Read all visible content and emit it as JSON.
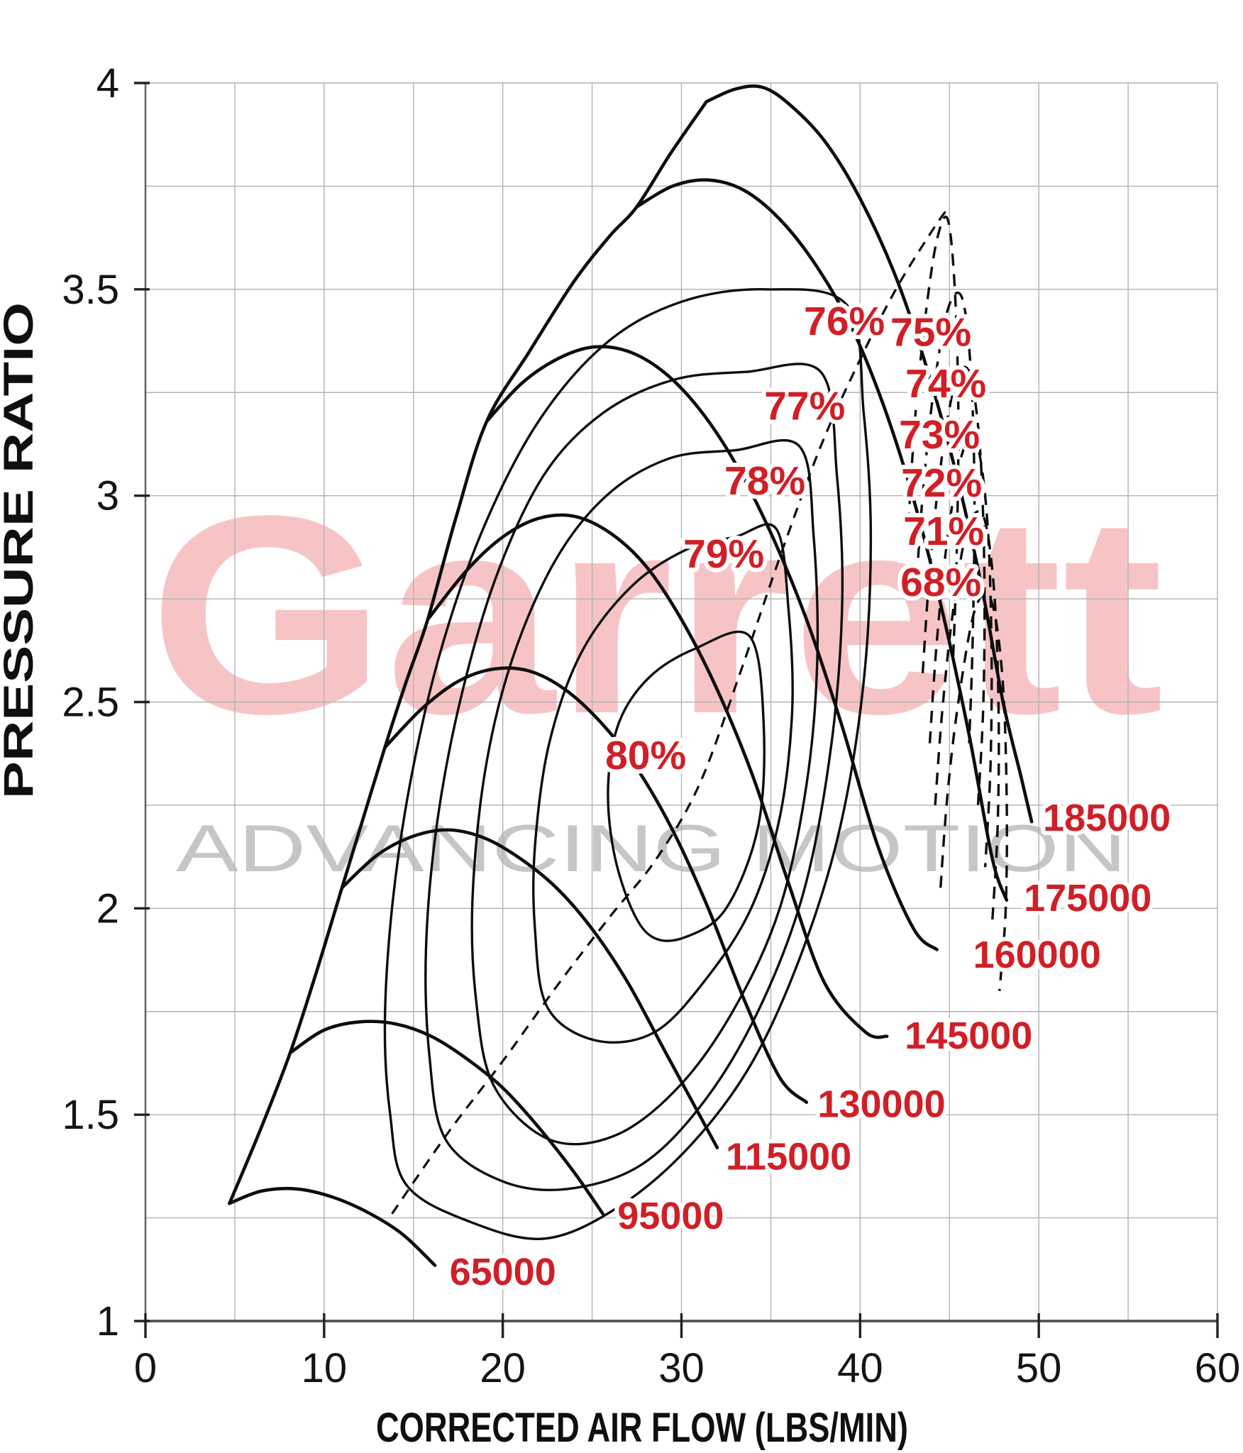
{
  "chart_data": {
    "type": "line",
    "subtype": "compressor-map",
    "xlabel": "CORRECTED AIR FLOW (LBS/MIN)",
    "ylabel": "PRESSURE RATIO",
    "xlim": [
      0,
      60
    ],
    "ylim": [
      1,
      4
    ],
    "x_major_ticks": [
      0,
      10,
      20,
      30,
      40,
      50,
      60
    ],
    "x_tick_labels": [
      "0",
      "10",
      "20",
      "30",
      "40",
      "50",
      "60"
    ],
    "y_major_ticks": [
      1,
      1.5,
      2,
      2.5,
      3,
      3.5,
      4
    ],
    "y_tick_labels": [
      "1",
      "1.5",
      "2",
      "2.5",
      "3",
      "3.5",
      "4"
    ],
    "x_minor_step": 5,
    "y_minor_step": 0.25,
    "grid": true,
    "legend_position": "none",
    "colors": {
      "curve": "#0d0d0d",
      "grid": "#b2b2b2",
      "axis": "#4a4a4a",
      "tick_text": "#141414",
      "red_label": "#d01f26",
      "watermark_red": "#e2242b",
      "watermark_gray": "#c6c6c6"
    },
    "watermark": {
      "brand": "Garrett",
      "tagline": "ADVANCING MOTION"
    },
    "surge_line": {
      "points": [
        [
          4.7,
          1.285
        ],
        [
          6.4,
          1.46
        ],
        [
          8.1,
          1.65
        ],
        [
          9.6,
          1.85
        ],
        [
          11,
          2.05
        ],
        [
          12.2,
          2.22
        ],
        [
          13.4,
          2.39
        ],
        [
          14.6,
          2.55
        ],
        [
          15.8,
          2.7
        ],
        [
          17.4,
          2.95
        ],
        [
          19.1,
          3.18
        ],
        [
          21.5,
          3.35
        ],
        [
          24,
          3.52
        ],
        [
          26,
          3.63
        ],
        [
          27.5,
          3.7
        ],
        [
          29.4,
          3.83
        ],
        [
          31.4,
          3.955
        ]
      ]
    },
    "peak_efficiency_line": {
      "style": "dashed",
      "points": [
        [
          13.8,
          1.26
        ],
        [
          17,
          1.46
        ],
        [
          20,
          1.63
        ],
        [
          23,
          1.81
        ],
        [
          26,
          1.98
        ],
        [
          28.6,
          2.12
        ],
        [
          31,
          2.3
        ],
        [
          33.2,
          2.56
        ],
        [
          35.5,
          2.85
        ],
        [
          37.8,
          3.12
        ],
        [
          40,
          3.33
        ],
        [
          42,
          3.5
        ],
        [
          44,
          3.64
        ],
        [
          44.8,
          3.69
        ]
      ]
    },
    "speed_lines": [
      {
        "rpm": "65000",
        "label_pos": {
          "flow": 20.0,
          "pr": 1.12
        },
        "points": [
          [
            4.7,
            1.285
          ],
          [
            6.5,
            1.315
          ],
          [
            8.5,
            1.32
          ],
          [
            10.5,
            1.3
          ],
          [
            12.5,
            1.262
          ],
          [
            14.4,
            1.21
          ],
          [
            16.2,
            1.135
          ]
        ]
      },
      {
        "rpm": "95000",
        "label_pos": {
          "flow": 29.4,
          "pr": 1.256
        },
        "points": [
          [
            8.1,
            1.65
          ],
          [
            10,
            1.705
          ],
          [
            12,
            1.725
          ],
          [
            14,
            1.72
          ],
          [
            16,
            1.69
          ],
          [
            18,
            1.635
          ],
          [
            20,
            1.565
          ],
          [
            22,
            1.47
          ],
          [
            24,
            1.36
          ],
          [
            25.6,
            1.26
          ]
        ]
      },
      {
        "rpm": "115000",
        "label_pos": {
          "flow": 36.0,
          "pr": 1.4
        },
        "points": [
          [
            11,
            2.05
          ],
          [
            13,
            2.13
          ],
          [
            15,
            2.175
          ],
          [
            17,
            2.19
          ],
          [
            19,
            2.17
          ],
          [
            21,
            2.12
          ],
          [
            23,
            2.05
          ],
          [
            25,
            1.95
          ],
          [
            27,
            1.82
          ],
          [
            29,
            1.66
          ],
          [
            31,
            1.5
          ],
          [
            32,
            1.42
          ]
        ]
      },
      {
        "rpm": "130000",
        "label_pos": {
          "flow": 41.2,
          "pr": 1.527
        },
        "points": [
          [
            13.4,
            2.39
          ],
          [
            15.5,
            2.485
          ],
          [
            17.5,
            2.55
          ],
          [
            19.5,
            2.58
          ],
          [
            21.5,
            2.575
          ],
          [
            23.5,
            2.53
          ],
          [
            25.5,
            2.45
          ],
          [
            27.5,
            2.34
          ],
          [
            29.5,
            2.19
          ],
          [
            31.5,
            2.0
          ],
          [
            33.5,
            1.78
          ],
          [
            35.5,
            1.59
          ],
          [
            37.0,
            1.53
          ]
        ]
      },
      {
        "rpm": "145000",
        "label_pos": {
          "flow": 46.07,
          "pr": 1.693
        },
        "points": [
          [
            15.8,
            2.7
          ],
          [
            18,
            2.82
          ],
          [
            20,
            2.9
          ],
          [
            22,
            2.945
          ],
          [
            24,
            2.95
          ],
          [
            26,
            2.91
          ],
          [
            28,
            2.83
          ],
          [
            30,
            2.7
          ],
          [
            32,
            2.53
          ],
          [
            34,
            2.32
          ],
          [
            36,
            2.06
          ],
          [
            38,
            1.82
          ],
          [
            40.3,
            1.7
          ],
          [
            41.5,
            1.69
          ]
        ]
      },
      {
        "rpm": "160000",
        "label_pos": {
          "flow": 49.9,
          "pr": 1.889
        },
        "points": [
          [
            19.1,
            3.18
          ],
          [
            21,
            3.27
          ],
          [
            23,
            3.33
          ],
          [
            25,
            3.36
          ],
          [
            27,
            3.35
          ],
          [
            29,
            3.3
          ],
          [
            31,
            3.21
          ],
          [
            33,
            3.08
          ],
          [
            35,
            2.91
          ],
          [
            37,
            2.7
          ],
          [
            39,
            2.44
          ],
          [
            41,
            2.15
          ],
          [
            43,
            1.95
          ],
          [
            44.3,
            1.9
          ]
        ]
      },
      {
        "rpm": "175000",
        "label_pos": {
          "flow": 52.74,
          "pr": 2.026
        },
        "points": [
          [
            27.5,
            3.7
          ],
          [
            29.5,
            3.75
          ],
          [
            31.5,
            3.765
          ],
          [
            33.5,
            3.74
          ],
          [
            35.5,
            3.67
          ],
          [
            37.5,
            3.56
          ],
          [
            39.5,
            3.41
          ],
          [
            41.3,
            3.22
          ],
          [
            43,
            2.99
          ],
          [
            44.6,
            2.72
          ],
          [
            46.1,
            2.42
          ],
          [
            47.4,
            2.12
          ],
          [
            48.2,
            2.02
          ]
        ]
      },
      {
        "rpm": "185000",
        "label_pos": {
          "flow": 53.81,
          "pr": 2.221
        },
        "points": [
          [
            31.4,
            3.955
          ],
          [
            33,
            3.985
          ],
          [
            34.5,
            3.99
          ],
          [
            36,
            3.95
          ],
          [
            38,
            3.86
          ],
          [
            40,
            3.72
          ],
          [
            42,
            3.53
          ],
          [
            43.8,
            3.3
          ],
          [
            45.4,
            3.05
          ],
          [
            46.8,
            2.78
          ],
          [
            48,
            2.5
          ],
          [
            49,
            2.32
          ],
          [
            49.6,
            2.21
          ]
        ]
      }
    ],
    "efficiency_islands": [
      {
        "pct": "80%",
        "label_pos": {
          "flow": 28.0,
          "pr": 2.372
        },
        "points": [
          [
            27.2,
            2.0
          ],
          [
            26.2,
            2.14
          ],
          [
            25.9,
            2.3
          ],
          [
            26.5,
            2.45
          ],
          [
            28.2,
            2.56
          ],
          [
            30.8,
            2.63
          ],
          [
            33.8,
            2.66
          ],
          [
            34.6,
            2.45
          ],
          [
            34.3,
            2.2
          ],
          [
            32.5,
            2.0
          ],
          [
            30.2,
            1.93
          ],
          [
            28.4,
            1.93
          ]
        ]
      },
      {
        "pct": "79%",
        "label_pos": {
          "flow": 32.37,
          "pr": 2.86
        },
        "points": [
          [
            22.5,
            1.76
          ],
          [
            21.8,
            1.95
          ],
          [
            21.8,
            2.15
          ],
          [
            22.6,
            2.4
          ],
          [
            24.4,
            2.62
          ],
          [
            27.2,
            2.78
          ],
          [
            30.3,
            2.87
          ],
          [
            33.0,
            2.9
          ],
          [
            35.3,
            2.92
          ],
          [
            36.0,
            2.72
          ],
          [
            36.2,
            2.48
          ],
          [
            35.5,
            2.22
          ],
          [
            33.9,
            2.0
          ],
          [
            31.4,
            1.83
          ],
          [
            28.5,
            1.7
          ],
          [
            25.2,
            1.68
          ]
        ]
      },
      {
        "pct": "78%",
        "label_pos": {
          "flow": 34.67,
          "pr": 3.037
        },
        "points": [
          [
            19.5,
            1.57
          ],
          [
            18.5,
            1.78
          ],
          [
            18.3,
            2.02
          ],
          [
            19.0,
            2.33
          ],
          [
            20.5,
            2.6
          ],
          [
            22.9,
            2.84
          ],
          [
            25.8,
            3.0
          ],
          [
            29.3,
            3.09
          ],
          [
            33.0,
            3.11
          ],
          [
            36.6,
            3.12
          ],
          [
            37.4,
            2.9
          ],
          [
            37.6,
            2.6
          ],
          [
            37.0,
            2.3
          ],
          [
            35.5,
            2.0
          ],
          [
            33.0,
            1.76
          ],
          [
            29.9,
            1.57
          ],
          [
            26.3,
            1.45
          ],
          [
            22.6,
            1.44
          ]
        ]
      },
      {
        "pct": "77%",
        "label_pos": {
          "flow": 36.9,
          "pr": 3.219
        },
        "points": [
          [
            16.8,
            1.44
          ],
          [
            15.9,
            1.64
          ],
          [
            15.7,
            1.9
          ],
          [
            16.3,
            2.2
          ],
          [
            17.6,
            2.5
          ],
          [
            19.6,
            2.8
          ],
          [
            22.3,
            3.05
          ],
          [
            25.6,
            3.2
          ],
          [
            29.5,
            3.28
          ],
          [
            33.6,
            3.3
          ],
          [
            37.8,
            3.3
          ],
          [
            38.7,
            3.05
          ],
          [
            39.0,
            2.75
          ],
          [
            38.4,
            2.4
          ],
          [
            36.9,
            2.05
          ],
          [
            34.5,
            1.77
          ],
          [
            31.4,
            1.54
          ],
          [
            27.8,
            1.38
          ],
          [
            23.6,
            1.32
          ],
          [
            19.9,
            1.34
          ]
        ]
      },
      {
        "pct": "76%",
        "label_pos": {
          "flow": 39.12,
          "pr": 3.424
        },
        "points": [
          [
            14.6,
            1.33
          ],
          [
            13.7,
            1.5
          ],
          [
            13.4,
            1.72
          ],
          [
            13.8,
            2.0
          ],
          [
            14.8,
            2.3
          ],
          [
            16.5,
            2.62
          ],
          [
            18.9,
            2.92
          ],
          [
            22.0,
            3.18
          ],
          [
            25.8,
            3.37
          ],
          [
            30.0,
            3.47
          ],
          [
            34.7,
            3.5
          ],
          [
            39.3,
            3.46
          ],
          [
            40.2,
            3.2
          ],
          [
            40.6,
            2.9
          ],
          [
            40.2,
            2.55
          ],
          [
            38.9,
            2.2
          ],
          [
            36.8,
            1.9
          ],
          [
            34.0,
            1.63
          ],
          [
            30.6,
            1.43
          ],
          [
            26.6,
            1.28
          ],
          [
            22.4,
            1.2
          ],
          [
            18.2,
            1.24
          ]
        ]
      }
    ],
    "efficiency_contours_right": [
      {
        "pct": "75%",
        "label_pos": {
          "flow": 43.96,
          "pr": 3.397
        },
        "points": [
          [
            42.7,
            2.93
          ],
          [
            43.1,
            3.2
          ],
          [
            43.7,
            3.45
          ],
          [
            44.3,
            3.62
          ],
          [
            44.9,
            3.67
          ],
          [
            45.3,
            3.5
          ],
          [
            45.5,
            3.2
          ],
          [
            45.4,
            2.85
          ],
          [
            45.2,
            2.6
          ]
        ]
      },
      {
        "pct": "74%",
        "label_pos": {
          "flow": 44.8,
          "pr": 3.273
        },
        "points": [
          [
            43.1,
            2.75
          ],
          [
            43.5,
            3.0
          ],
          [
            44.1,
            3.25
          ],
          [
            44.9,
            3.45
          ],
          [
            45.7,
            3.48
          ],
          [
            46.2,
            3.3
          ],
          [
            46.4,
            3.0
          ],
          [
            46.3,
            2.65
          ],
          [
            46.1,
            2.4
          ]
        ]
      },
      {
        "pct": "73%",
        "label_pos": {
          "flow": 44.44,
          "pr": 3.149
        },
        "points": [
          [
            43.5,
            2.57
          ],
          [
            43.9,
            2.82
          ],
          [
            44.5,
            3.07
          ],
          [
            45.3,
            3.27
          ],
          [
            46.1,
            3.3
          ],
          [
            46.7,
            3.12
          ],
          [
            46.95,
            2.82
          ],
          [
            46.9,
            2.5
          ],
          [
            46.6,
            2.25
          ]
        ]
      },
      {
        "pct": "72%",
        "label_pos": {
          "flow": 44.56,
          "pr": 3.032
        },
        "points": [
          [
            43.9,
            2.4
          ],
          [
            44.3,
            2.65
          ],
          [
            44.9,
            2.9
          ],
          [
            45.7,
            3.1
          ],
          [
            46.5,
            3.13
          ],
          [
            47.1,
            2.95
          ],
          [
            47.35,
            2.65
          ],
          [
            47.3,
            2.35
          ],
          [
            47.0,
            2.1
          ]
        ]
      },
      {
        "pct": "71%",
        "label_pos": {
          "flow": 44.68,
          "pr": 2.915
        },
        "points": [
          [
            44.2,
            2.25
          ],
          [
            44.6,
            2.48
          ],
          [
            45.2,
            2.72
          ],
          [
            46.0,
            2.92
          ],
          [
            46.9,
            2.95
          ],
          [
            47.5,
            2.77
          ],
          [
            47.75,
            2.48
          ],
          [
            47.7,
            2.2
          ],
          [
            47.4,
            1.97
          ]
        ]
      },
      {
        "pct": "68%",
        "label_pos": {
          "flow": 44.52,
          "pr": 2.791
        },
        "points": [
          [
            44.5,
            2.05
          ],
          [
            44.9,
            2.28
          ],
          [
            45.5,
            2.5
          ],
          [
            46.4,
            2.72
          ],
          [
            47.3,
            2.75
          ],
          [
            47.95,
            2.57
          ],
          [
            48.2,
            2.28
          ],
          [
            48.15,
            2.0
          ],
          [
            47.8,
            1.8
          ]
        ]
      }
    ]
  }
}
